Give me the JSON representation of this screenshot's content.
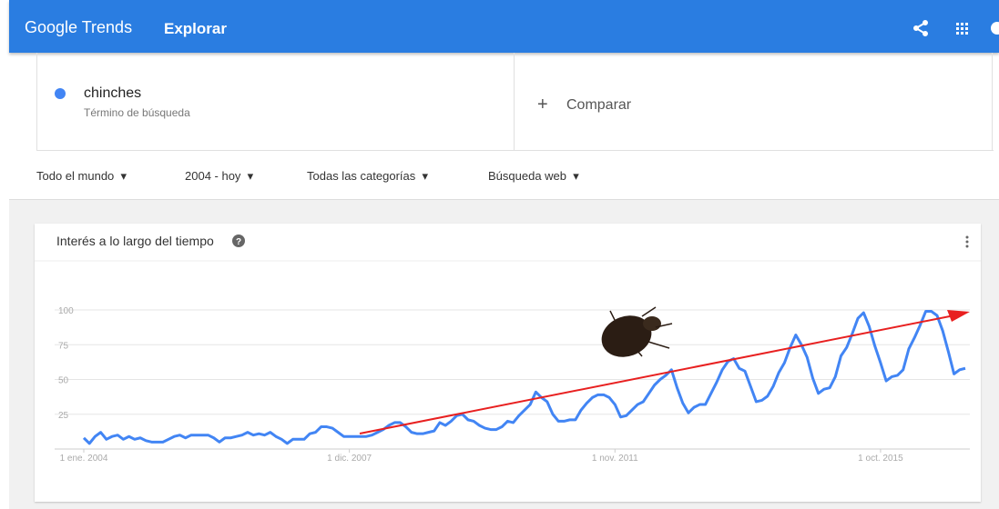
{
  "header": {
    "logo": "Google Trends",
    "section": "Explorar"
  },
  "search": {
    "term_type": "Término de búsqueda",
    "compare": "Comparar"
  },
  "filters": [
    "Todo el mundo",
    "2004 - hoy",
    "Todas las categorías",
    "Búsqueda web"
  ],
  "chart_data": {
    "type": "line",
    "title": "Interés a lo largo del tiempo",
    "categories": [
      "1 ene. 2004",
      null,
      null,
      null,
      null,
      null,
      null,
      null,
      null,
      null,
      null,
      null,
      null,
      null,
      null,
      null,
      null,
      null,
      null,
      null,
      null,
      null,
      null,
      null,
      null,
      null,
      null,
      null,
      null,
      null,
      null,
      null,
      null,
      null,
      null,
      null,
      null,
      null,
      null,
      null,
      null,
      null,
      null,
      null,
      null,
      null,
      null,
      "1 dic. 2007",
      null,
      null,
      null,
      null,
      null,
      null,
      null,
      null,
      null,
      null,
      null,
      null,
      null,
      null,
      null,
      null,
      null,
      null,
      null,
      null,
      null,
      null,
      null,
      null,
      null,
      null,
      null,
      null,
      null,
      null,
      null,
      null,
      null,
      null,
      null,
      null,
      null,
      null,
      null,
      null,
      null,
      null,
      null,
      null,
      null,
      null,
      "1 nov. 2011",
      null,
      null,
      null,
      null,
      null,
      null,
      null,
      null,
      null,
      null,
      null,
      null,
      null,
      null,
      null,
      null,
      null,
      null,
      null,
      null,
      null,
      null,
      null,
      null,
      null,
      null,
      null,
      null,
      null,
      null,
      null,
      null,
      null,
      null,
      null,
      null,
      null,
      null,
      null,
      null,
      null,
      null,
      null,
      null,
      null,
      null,
      "1 oct. 2015",
      null,
      null,
      null,
      null,
      null,
      null,
      null,
      null,
      null,
      null,
      null,
      null,
      null,
      null,
      null
    ],
    "series": [
      {
        "name": "chinches",
        "color": "#4285f4",
        "values": [
          8,
          4,
          9,
          12,
          7,
          9,
          10,
          7,
          9,
          7,
          8,
          6,
          5,
          5,
          5,
          7,
          9,
          10,
          8,
          10,
          10,
          10,
          10,
          8,
          5,
          8,
          8,
          9,
          10,
          12,
          10,
          11,
          10,
          12,
          9,
          7,
          4,
          7,
          7,
          7,
          11,
          12,
          16,
          16,
          15,
          12,
          9,
          9,
          9,
          9,
          9,
          10,
          12,
          14,
          17,
          19,
          19,
          16,
          12,
          11,
          11,
          12,
          13,
          19,
          17,
          20,
          24,
          25,
          21,
          20,
          17,
          15,
          14,
          14,
          16,
          20,
          19,
          24,
          28,
          32,
          41,
          37,
          34,
          25,
          20,
          20,
          21,
          21,
          28,
          33,
          37,
          39,
          39,
          37,
          32,
          23,
          24,
          28,
          32,
          34,
          40,
          46,
          50,
          53,
          57,
          44,
          33,
          26,
          30,
          32,
          32,
          40,
          48,
          57,
          63,
          65,
          58,
          56,
          45,
          34,
          35,
          38,
          45,
          55,
          62,
          73,
          82,
          75,
          66,
          51,
          40,
          43,
          44,
          52,
          67,
          73,
          83,
          94,
          98,
          88,
          74,
          62,
          49,
          52,
          53,
          57,
          72,
          80,
          89,
          99,
          99,
          96,
          85,
          70,
          54,
          57,
          58
        ]
      }
    ],
    "ylim": [
      0,
      100
    ],
    "yticks": [
      25,
      50,
      75,
      100
    ],
    "grid": true
  }
}
